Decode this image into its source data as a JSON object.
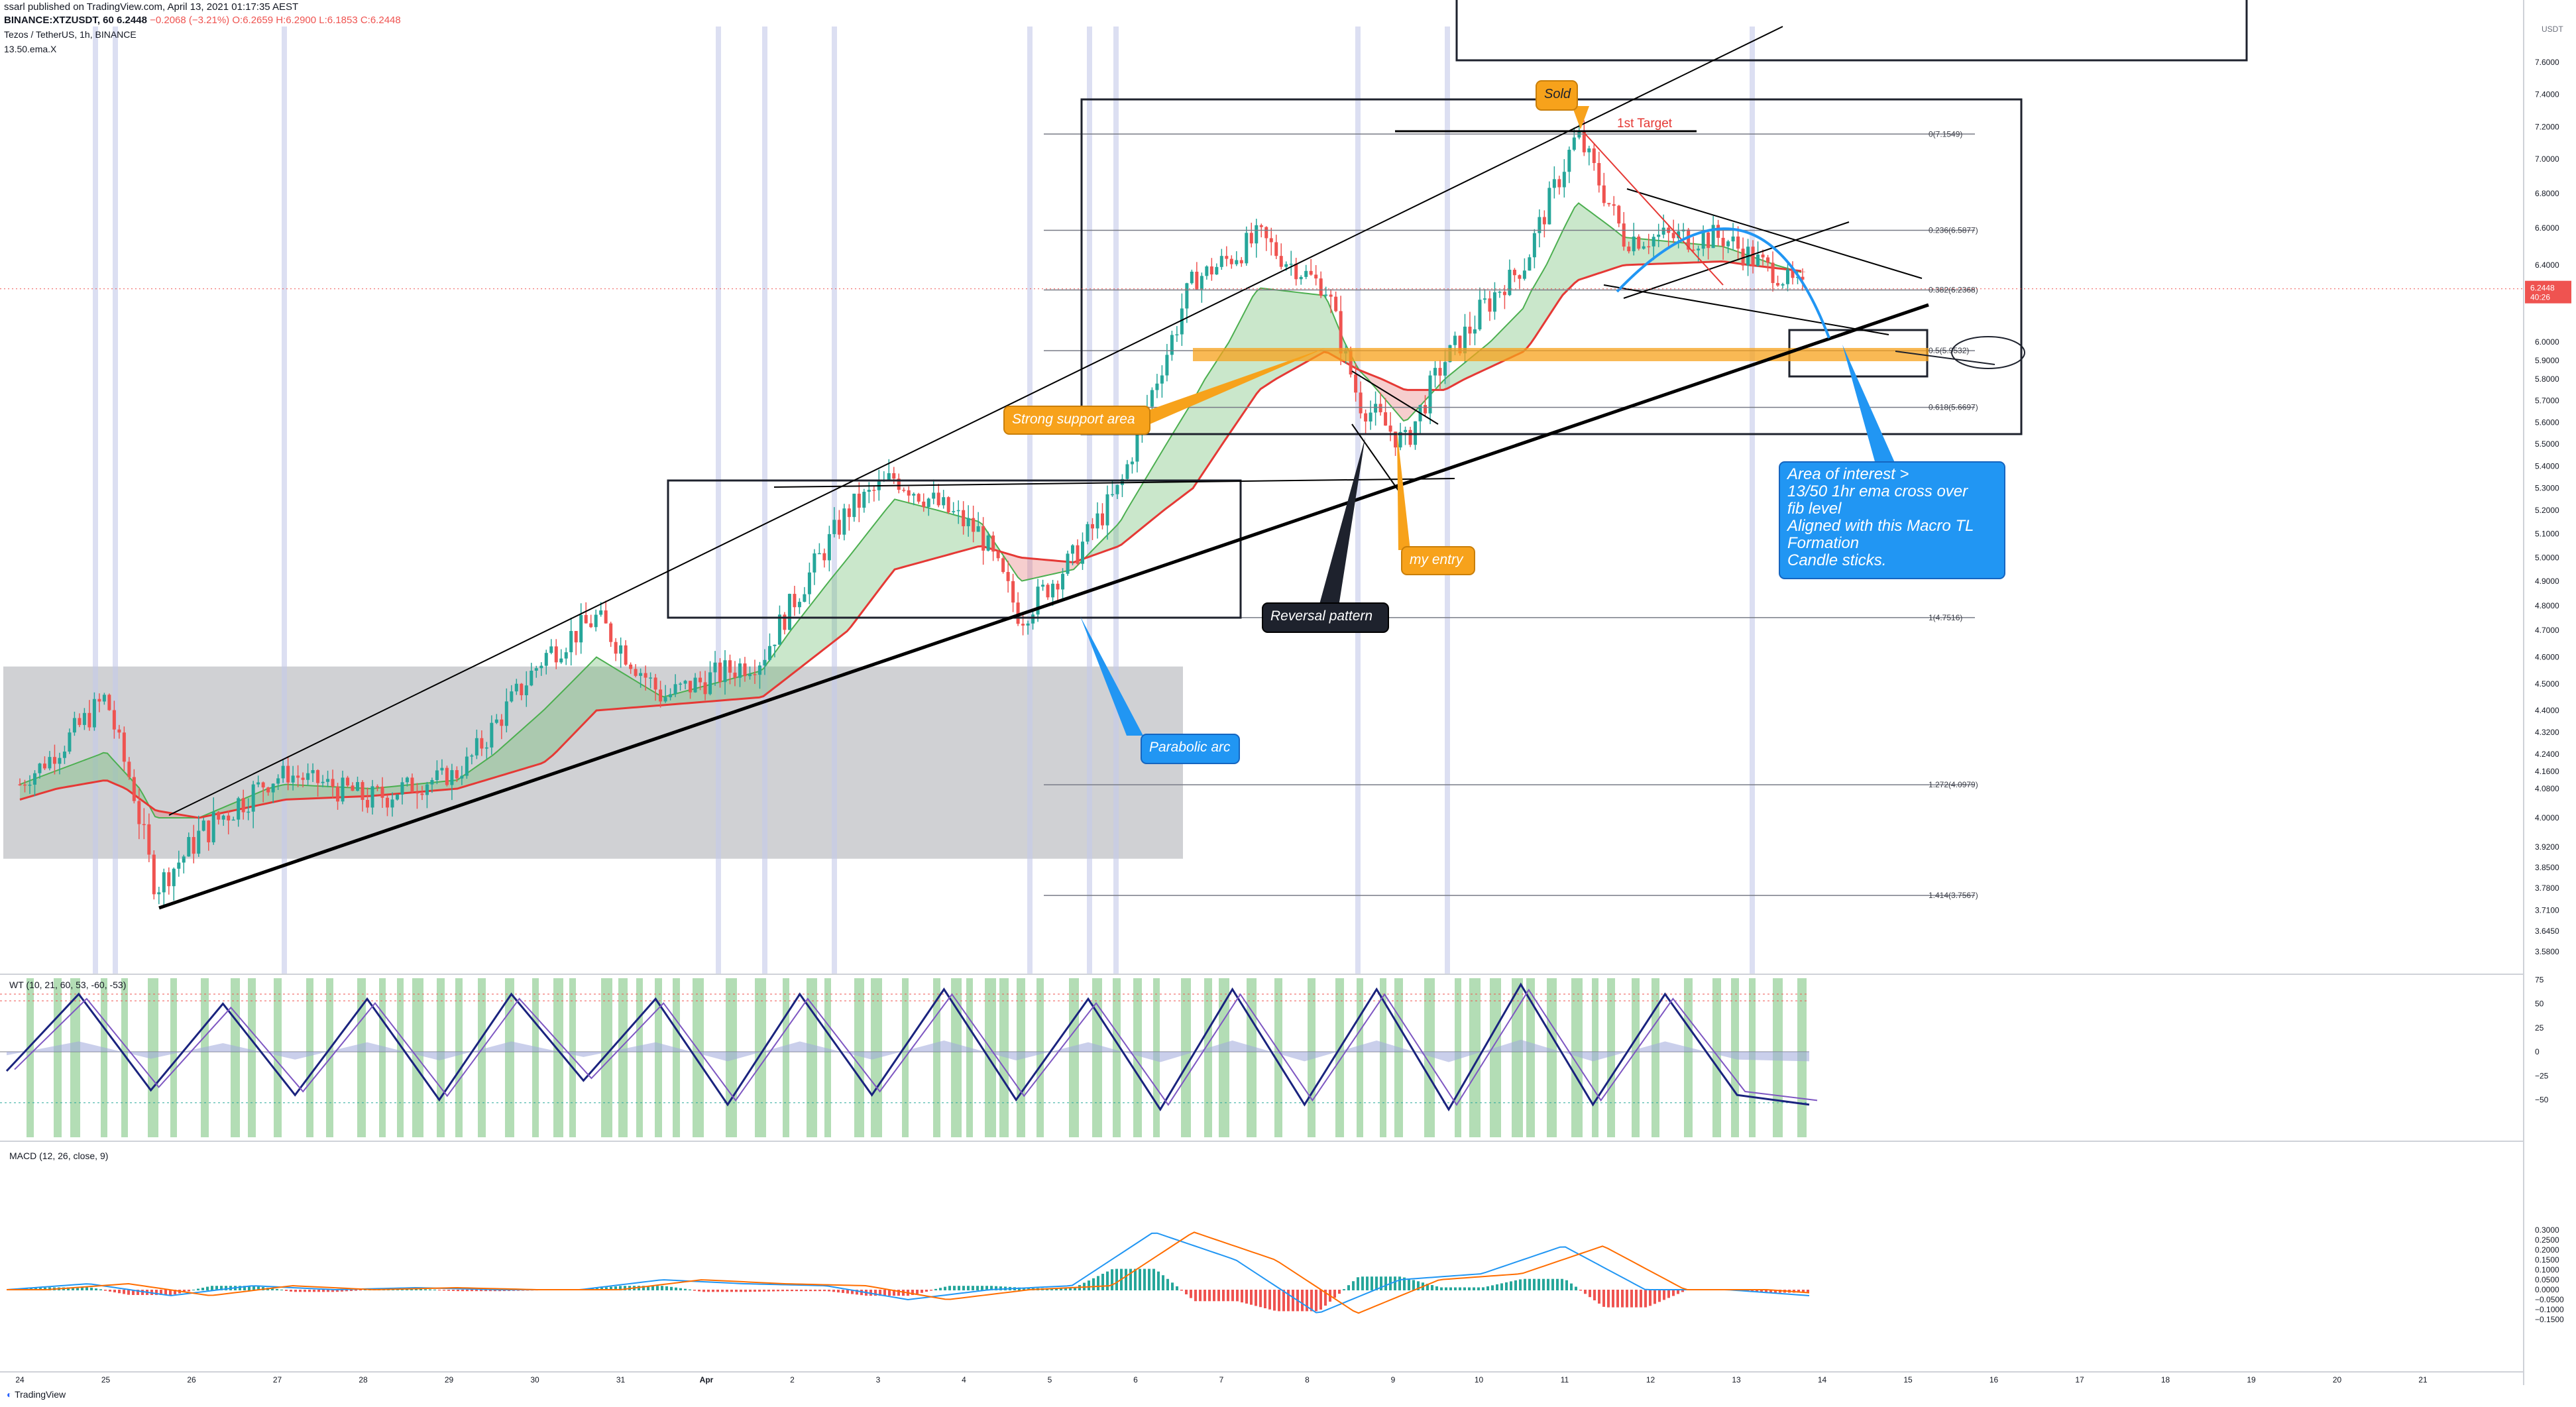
{
  "header": {
    "published": "ssarl published on TradingView.com, April 13, 2021 01:17:35 AEST",
    "symbol": "BINANCE:XTZUSDT, 60",
    "last": "6.2448",
    "change": "−0.2068 (−3.21%)",
    "ohlc": "O:6.2659 H:6.2900 L:6.1853 C:6.2448",
    "title": "Tezos / TetherUS, 1h, BINANCE",
    "indicator": "13.50.ema.X"
  },
  "price_axis": {
    "currency": "USDT",
    "labels": [
      "7.6000",
      "7.4000",
      "7.2000",
      "7.0000",
      "6.8000",
      "6.6000",
      "6.4000",
      "6.2000",
      "6.0000",
      "5.9000",
      "5.8000",
      "5.7000",
      "5.6000",
      "5.5000",
      "5.4000",
      "5.3000",
      "5.2000",
      "5.1000",
      "5.0000",
      "4.9000",
      "4.8000",
      "4.7000",
      "4.6000",
      "4.5000",
      "4.4000",
      "4.3200",
      "4.2400",
      "4.1600",
      "4.0800",
      "4.0000",
      "3.9200",
      "3.8500",
      "3.7800",
      "3.7100",
      "3.6450",
      "3.5800"
    ],
    "current_price": "6.2448",
    "countdown": "40:26"
  },
  "time_axis": {
    "labels": [
      "24",
      "25",
      "26",
      "27",
      "28",
      "29",
      "30",
      "31",
      "Apr",
      "2",
      "3",
      "4",
      "5",
      "6",
      "7",
      "8",
      "9",
      "10",
      "11",
      "12",
      "13",
      "14",
      "15",
      "16",
      "17",
      "18",
      "19",
      "20",
      "21"
    ]
  },
  "fib_levels": [
    {
      "label": "0(7.1549)",
      "value": 7.1549
    },
    {
      "label": "0.236(6.5877)",
      "value": 6.5877
    },
    {
      "label": "0.382(6.2368)",
      "value": 6.2368
    },
    {
      "label": "0.5(5.9532)",
      "value": 5.9532
    },
    {
      "label": "0.618(5.6697)",
      "value": 5.6697
    },
    {
      "label": "1(4.7516)",
      "value": 4.7516
    },
    {
      "label": "1.272(4.0979)",
      "value": 4.0979
    },
    {
      "label": "1.414(3.7567)",
      "value": 3.7567
    }
  ],
  "annotations": {
    "sold": "Sold",
    "first_target": "1st Target",
    "support": "Strong support area",
    "reversal": "Reversal pattern",
    "entry": "my entry",
    "parabolic": "Parabolic arc",
    "area_of_interest": [
      "Area of interest >",
      "13/50 1hr ema cross over",
      "fib level",
      "Aligned with this Macro TL",
      "Formation",
      "Candle sticks."
    ]
  },
  "wt_panel": {
    "title": "WT (10, 21, 60, 53, -60, -53)",
    "axis": [
      "75",
      "50",
      "25",
      "0",
      "−25",
      "−50"
    ]
  },
  "macd_panel": {
    "title": "MACD (12, 26, close, 9)",
    "axis": [
      "0.3000",
      "0.2500",
      "0.2000",
      "0.1500",
      "0.1000",
      "0.0500",
      "0.0000",
      "−0.0500",
      "−0.1000",
      "−0.1500"
    ]
  },
  "footer": "TradingView",
  "colors": {
    "up": "#26a69a",
    "down": "#ef5350",
    "ema_fast": "#4caf50",
    "ema_slow": "#e53935",
    "orange": "#f7a21b",
    "blue": "#2196f3",
    "dark": "#1e222d"
  },
  "chart_data": {
    "type": "candlestick",
    "symbol": "XTZUSDT",
    "interval": "1h",
    "ylim": [
      3.58,
      7.65
    ],
    "price_path": [
      {
        "x": "Mar 24",
        "y": 4.1
      },
      {
        "x": "Mar 25",
        "y": 4.45
      },
      {
        "x": "Mar 25",
        "y": 3.78
      },
      {
        "x": "Mar 26",
        "y": 3.95
      },
      {
        "x": "Mar 27",
        "y": 4.15
      },
      {
        "x": "Mar 28",
        "y": 4.05
      },
      {
        "x": "Mar 29",
        "y": 4.15
      },
      {
        "x": "Mar 30",
        "y": 4.6
      },
      {
        "x": "Mar 30",
        "y": 4.75
      },
      {
        "x": "Mar 31",
        "y": 4.45
      },
      {
        "x": "Apr 1",
        "y": 4.6
      },
      {
        "x": "Apr 2",
        "y": 5.2
      },
      {
        "x": "Apr 3",
        "y": 5.35
      },
      {
        "x": "Apr 4",
        "y": 5.1
      },
      {
        "x": "Apr 4",
        "y": 4.75
      },
      {
        "x": "Apr 5",
        "y": 5.0
      },
      {
        "x": "Apr 6",
        "y": 5.3
      },
      {
        "x": "Apr 6",
        "y": 6.3
      },
      {
        "x": "Apr 7",
        "y": 6.55
      },
      {
        "x": "Apr 7",
        "y": 6.25
      },
      {
        "x": "Apr 8",
        "y": 5.7
      },
      {
        "x": "Apr 8",
        "y": 5.5
      },
      {
        "x": "Apr 9",
        "y": 5.9
      },
      {
        "x": "Apr 10",
        "y": 6.4
      },
      {
        "x": "Apr 10",
        "y": 7.15
      },
      {
        "x": "Apr 11",
        "y": 6.55
      },
      {
        "x": "Apr 12",
        "y": 6.55
      },
      {
        "x": "Apr 12",
        "y": 6.24
      }
    ],
    "ema_13_points": [
      4.1,
      4.25,
      4.0,
      4.0,
      4.1,
      4.08,
      4.12,
      4.4,
      4.6,
      4.45,
      4.55,
      5.0,
      5.25,
      5.15,
      4.9,
      4.95,
      5.15,
      5.7,
      6.25,
      6.2,
      5.85,
      5.6,
      5.8,
      6.15,
      6.75,
      6.55,
      6.5,
      6.35
    ],
    "ema_50_points": [
      4.05,
      4.12,
      4.02,
      4.0,
      4.05,
      4.06,
      4.08,
      4.2,
      4.4,
      4.42,
      4.45,
      4.7,
      4.95,
      5.05,
      5.0,
      4.98,
      5.05,
      5.3,
      5.75,
      5.95,
      5.85,
      5.75,
      5.75,
      5.95,
      6.3,
      6.4,
      6.42,
      6.36
    ],
    "wt_path": [
      -20,
      60,
      -40,
      50,
      -45,
      55,
      -50,
      60,
      -30,
      55,
      -55,
      60,
      -45,
      65,
      -50,
      55,
      -60,
      65,
      -55,
      65,
      -60,
      70,
      -55,
      60,
      -45,
      -55
    ],
    "macd_path": [
      0.0,
      0.03,
      -0.03,
      0.02,
      0.0,
      0.01,
      0.0,
      0.0,
      0.05,
      0.03,
      0.02,
      -0.05,
      0.0,
      0.02,
      0.29,
      0.15,
      -0.12,
      0.05,
      0.08,
      0.22,
      0.0,
      0.0,
      -0.03
    ]
  }
}
